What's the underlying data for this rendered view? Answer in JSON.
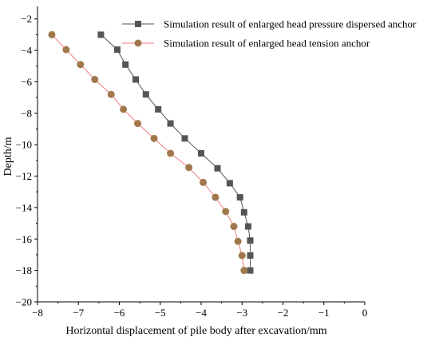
{
  "chart_data": {
    "type": "line",
    "xlabel": "Horizontal displacement of pile body after excavation/mm",
    "ylabel": "Depth/m",
    "xlim": [
      -8,
      0
    ],
    "ylim": [
      -20,
      -1.2
    ],
    "x_ticks": [
      -8,
      -7,
      -6,
      -5,
      -4,
      -3,
      -2,
      -1,
      0
    ],
    "y_ticks": [
      -2,
      -4,
      -6,
      -8,
      -10,
      -12,
      -14,
      -16,
      -18,
      -20
    ],
    "x_tick_labels": [
      "−8",
      "−7",
      "−6",
      "−5",
      "−4",
      "−3",
      "−2",
      "−1",
      "0"
    ],
    "y_tick_labels": [
      "−2",
      "−4",
      "−6",
      "−8",
      "−10",
      "−12",
      "−14",
      "−16",
      "−18",
      "−20"
    ],
    "grid": false,
    "legend_position": "top-right",
    "series": [
      {
        "name": "Simulation result of enlarged head pressure dispersed anchor",
        "marker": "square",
        "color": "#555555",
        "line_color": "#555555",
        "points": [
          [
            -6.45,
            -3.0
          ],
          [
            -6.05,
            -3.95
          ],
          [
            -5.85,
            -4.9
          ],
          [
            -5.6,
            -5.85
          ],
          [
            -5.35,
            -6.8
          ],
          [
            -5.05,
            -7.75
          ],
          [
            -4.75,
            -8.65
          ],
          [
            -4.4,
            -9.6
          ],
          [
            -4.0,
            -10.55
          ],
          [
            -3.6,
            -11.5
          ],
          [
            -3.3,
            -12.45
          ],
          [
            -3.05,
            -13.35
          ],
          [
            -2.95,
            -14.3
          ],
          [
            -2.85,
            -15.2
          ],
          [
            -2.8,
            -16.1
          ],
          [
            -2.8,
            -17.05
          ],
          [
            -2.8,
            -18.0
          ]
        ]
      },
      {
        "name": "Simulation result of enlarged head tension anchor",
        "marker": "circle",
        "color": "#a0784c",
        "line_color": "#f07a82",
        "points": [
          [
            -7.65,
            -3.0
          ],
          [
            -7.3,
            -3.95
          ],
          [
            -6.95,
            -4.9
          ],
          [
            -6.6,
            -5.85
          ],
          [
            -6.2,
            -6.8
          ],
          [
            -5.9,
            -7.75
          ],
          [
            -5.55,
            -8.65
          ],
          [
            -5.15,
            -9.6
          ],
          [
            -4.75,
            -10.55
          ],
          [
            -4.3,
            -11.45
          ],
          [
            -3.95,
            -12.4
          ],
          [
            -3.65,
            -13.35
          ],
          [
            -3.4,
            -14.25
          ],
          [
            -3.2,
            -15.2
          ],
          [
            -3.1,
            -16.15
          ],
          [
            -3.0,
            -17.05
          ],
          [
            -2.95,
            -18.0
          ]
        ]
      }
    ]
  }
}
